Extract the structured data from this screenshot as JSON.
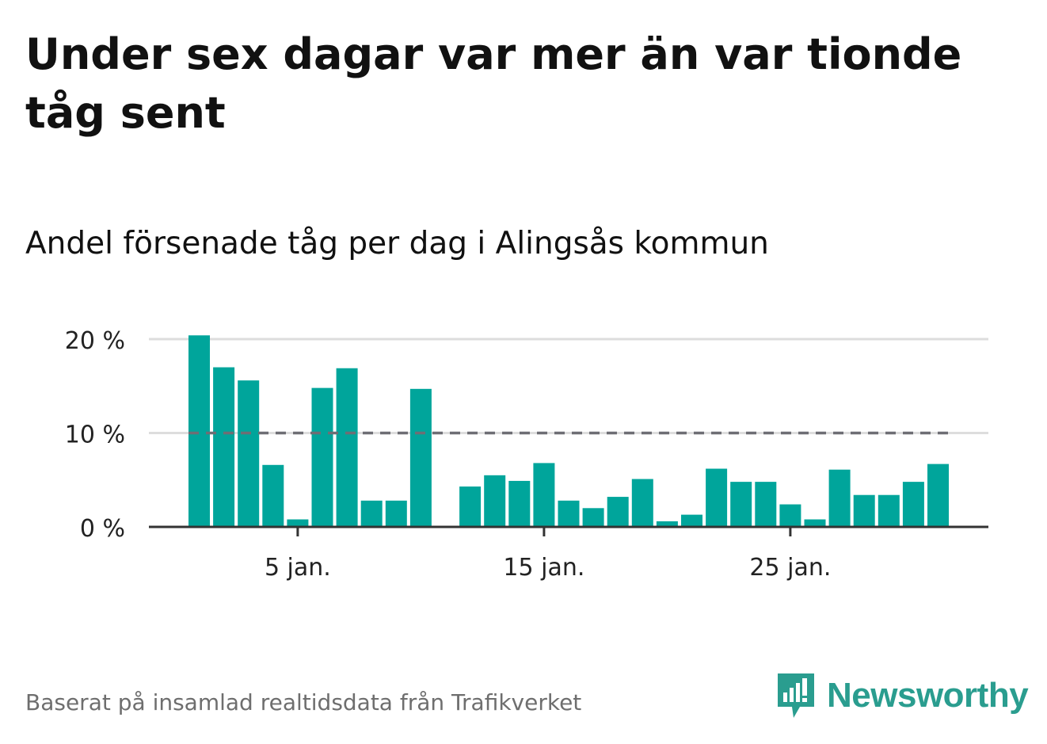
{
  "header": {
    "title": "Under sex dagar var mer än var tionde tåg sent",
    "subtitle": "Andel försenade tåg per dag i Alingsås kommun"
  },
  "footer": {
    "source": "Baserat på insamlad realtidsdata från Trafikverket",
    "brand": "Newsworthy"
  },
  "colors": {
    "bar": "#00a59b",
    "reference_line": "#6e6e74",
    "grid": "#dddddd",
    "axis": "#333333",
    "brand": "#2a9d8f"
  },
  "chart_data": {
    "type": "bar",
    "x": [
      1,
      2,
      3,
      4,
      5,
      6,
      7,
      8,
      9,
      10,
      11,
      12,
      13,
      14,
      15,
      16,
      17,
      18,
      19,
      20,
      21,
      22,
      23,
      24,
      25,
      26,
      27,
      28,
      29,
      30,
      31
    ],
    "values": [
      20.4,
      17.0,
      15.6,
      6.6,
      0.8,
      14.8,
      16.9,
      2.8,
      2.8,
      14.7,
      null,
      4.3,
      5.5,
      4.9,
      6.8,
      2.8,
      2.0,
      3.2,
      5.1,
      0.6,
      1.3,
      6.2,
      4.8,
      4.8,
      2.4,
      0.8,
      6.1,
      3.4,
      3.4,
      4.8,
      6.7
    ],
    "ylim": [
      0,
      20
    ],
    "yticks": [
      0,
      10,
      20
    ],
    "ytick_labels": [
      "0 %",
      "10 %",
      "20 %"
    ],
    "xticks": [
      5,
      15,
      25
    ],
    "xtick_labels": [
      "5 jan.",
      "15 jan.",
      "25 jan."
    ],
    "reference_line": 10,
    "grid": true
  }
}
